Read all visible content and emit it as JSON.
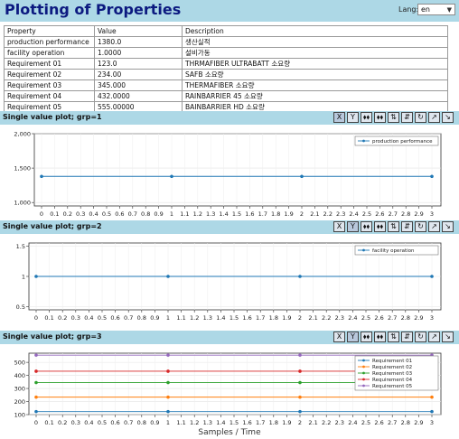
{
  "app": {
    "title": "Plotting of Properties",
    "lang_label": "Lang:",
    "lang_value": "en"
  },
  "table": {
    "headers": [
      "Property",
      "Value",
      "Description"
    ],
    "rows": [
      [
        "production performance",
        "1380.0",
        "생산실적"
      ],
      [
        "facility operation",
        "1.0000",
        "설비가동"
      ],
      [
        "Requirement 01",
        "123.0",
        "THRMAFIBER ULTRABATT 소요량"
      ],
      [
        "Requirement 02",
        "234.00",
        "SAFB 소요량"
      ],
      [
        "Requirement 03",
        "345.000",
        "THERMAFIBER 소요량"
      ],
      [
        "Requirement 04",
        "432.0000",
        "RAINBARRIER 45 소요량"
      ],
      [
        "Requirement 05",
        "555.00000",
        "BAINBARRIER HD 소요량"
      ]
    ]
  },
  "toolbar": [
    "X",
    "Y",
    "⬧⬧",
    "⬧⬧",
    "⇅",
    "⇵",
    "↻",
    "↗",
    "↘"
  ],
  "sections": [
    {
      "title": "Single value plot; grp=1"
    },
    {
      "title": "Single value plot; grp=2"
    },
    {
      "title": "Single value plot; grp=3"
    }
  ],
  "x_axis_label": "Samples / Time",
  "chart_data": [
    {
      "type": "line",
      "x": [
        0,
        1,
        2,
        3
      ],
      "x_ticks": [
        "0",
        "0.1",
        "0.2",
        "0.3",
        "0.4",
        "0.5",
        "0.6",
        "0.7",
        "0.8",
        "0.9",
        "1",
        "1.1",
        "1.2",
        "1.3",
        "1.4",
        "1.5",
        "1.6",
        "1.7",
        "1.8",
        "1.9",
        "2",
        "2.1",
        "2.2",
        "2.3",
        "2.4",
        "2.5",
        "2.6",
        "2.7",
        "2.8",
        "2.9",
        "3"
      ],
      "y_ticks": [
        "1,000",
        "1,500",
        "2,000"
      ],
      "ylim": [
        950,
        2000
      ],
      "grid": true,
      "legend": "top-right",
      "series": [
        {
          "name": "production performance",
          "values": [
            1380,
            1380,
            1380,
            1380
          ],
          "color": "#1f77b4"
        }
      ]
    },
    {
      "type": "line",
      "x": [
        0,
        1,
        2,
        3
      ],
      "x_ticks": [
        "0",
        "0.1",
        "0.2",
        "0.3",
        "0.4",
        "0.5",
        "0.6",
        "0.7",
        "0.8",
        "0.9",
        "1",
        "1.1",
        "1.2",
        "1.3",
        "1.4",
        "1.5",
        "1.6",
        "1.7",
        "1.8",
        "1.9",
        "2",
        "2.1",
        "2.2",
        "2.3",
        "2.4",
        "2.5",
        "2.6",
        "2.7",
        "2.8",
        "2.9",
        "3"
      ],
      "y_ticks": [
        "0.5",
        "1",
        "1.5"
      ],
      "ylim": [
        0.45,
        1.55
      ],
      "grid": true,
      "legend": "top-right",
      "series": [
        {
          "name": "facility operation",
          "values": [
            1,
            1,
            1,
            1
          ],
          "color": "#1f77b4"
        }
      ]
    },
    {
      "type": "line",
      "x": [
        0,
        1,
        2,
        3
      ],
      "x_ticks": [
        "0",
        "0.1",
        "0.2",
        "0.3",
        "0.4",
        "0.5",
        "0.6",
        "0.7",
        "0.8",
        "0.9",
        "1",
        "1.1",
        "1.2",
        "1.3",
        "1.4",
        "1.5",
        "1.6",
        "1.7",
        "1.8",
        "1.9",
        "2",
        "2.1",
        "2.2",
        "2.3",
        "2.4",
        "2.5",
        "2.6",
        "2.7",
        "2.8",
        "2.9",
        "3"
      ],
      "y_ticks": [
        "100",
        "200",
        "300",
        "400",
        "500"
      ],
      "ylim": [
        100,
        570
      ],
      "grid": true,
      "legend": "top-right",
      "series": [
        {
          "name": "Requirement 01",
          "values": [
            123,
            123,
            123,
            123
          ],
          "color": "#1f77b4"
        },
        {
          "name": "Requirement 02",
          "values": [
            234,
            234,
            234,
            234
          ],
          "color": "#ff7f0e"
        },
        {
          "name": "Requirement 03",
          "values": [
            345,
            345,
            345,
            345
          ],
          "color": "#2ca02c"
        },
        {
          "name": "Requirement 04",
          "values": [
            432,
            432,
            432,
            432
          ],
          "color": "#d62728"
        },
        {
          "name": "Requirement 05",
          "values": [
            555,
            555,
            555,
            555
          ],
          "color": "#9467bd"
        }
      ]
    }
  ]
}
